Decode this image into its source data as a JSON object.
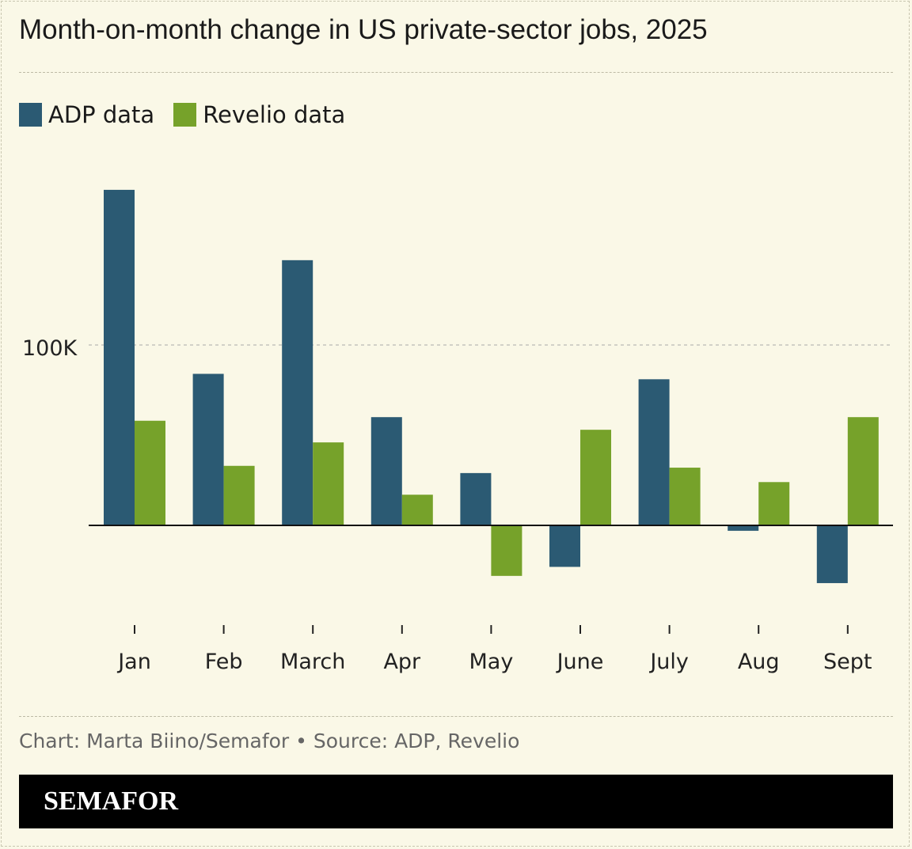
{
  "title": "Month-on-month change in US private-sector jobs, 2025",
  "source": "Chart: Marta Biino/Semafor • Source: ADP, Revelio",
  "logo": "SEMAFOR",
  "colors": {
    "ADP": "#2b5a73",
    "Revelio": "#76a22a",
    "background": "#faf8e7"
  },
  "chart_data": {
    "type": "bar",
    "title": "Month-on-month change in US private-sector jobs, 2025",
    "categories": [
      "Jan",
      "Feb",
      "March",
      "Apr",
      "May",
      "June",
      "July",
      "Aug",
      "Sept"
    ],
    "series": [
      {
        "name": "ADP data",
        "color": "#2b5a73",
        "values": [
          186000,
          84000,
          147000,
          60000,
          29000,
          -23000,
          81000,
          -3000,
          -32000
        ]
      },
      {
        "name": "Revelio data",
        "color": "#76a22a",
        "values": [
          58000,
          33000,
          46000,
          17000,
          -28000,
          53000,
          32000,
          24000,
          60000
        ]
      }
    ],
    "yticks": [
      {
        "value": 100000,
        "label": "100K"
      }
    ],
    "ylim": [
      -55000,
      200000
    ],
    "grid": true,
    "legend": "top-left"
  }
}
